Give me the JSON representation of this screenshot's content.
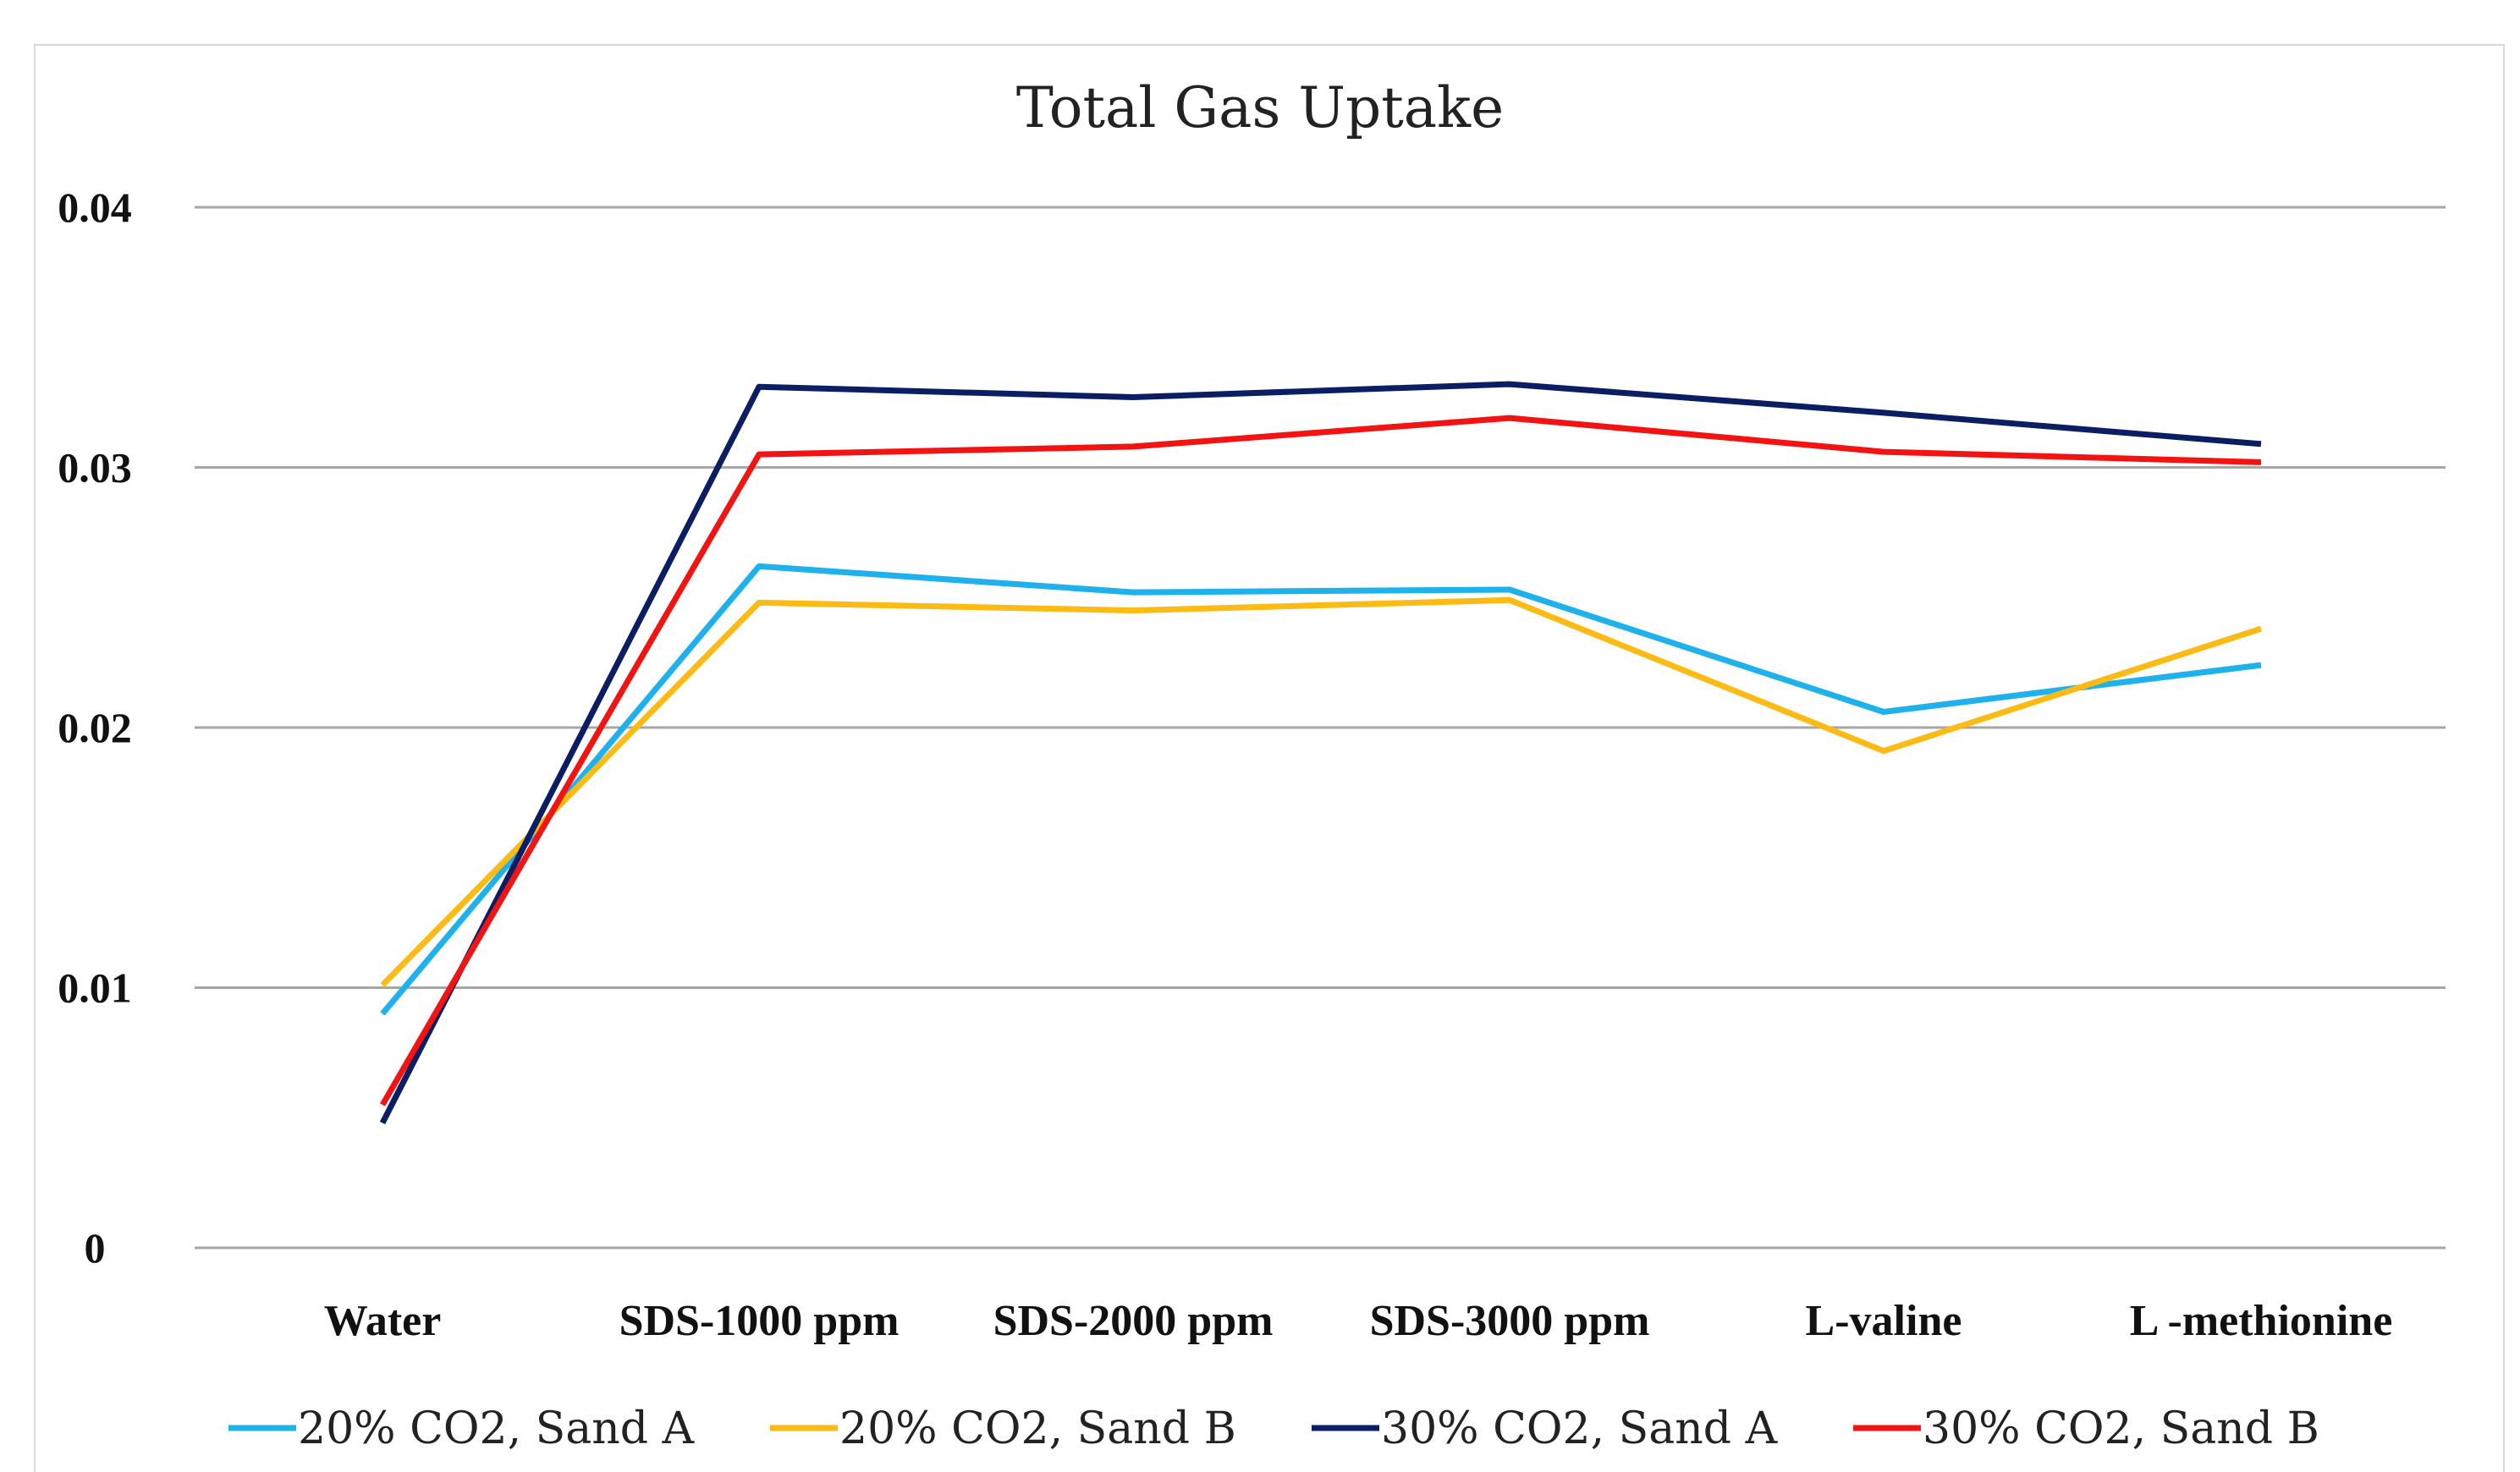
{
  "chart_data": {
    "type": "line",
    "title": "Total Gas Uptake",
    "xlabel": "",
    "ylabel": "",
    "categories": [
      "Water",
      "SDS-1000 ppm",
      "SDS-2000 ppm",
      "SDS-3000 ppm",
      "L-valine",
      "L -methionine"
    ],
    "ylim": [
      0,
      0.04
    ],
    "yticks": [
      0,
      0.01,
      0.02,
      0.03,
      0.04
    ],
    "ytick_labels": [
      "0",
      "0.01",
      "0.02",
      "0.03",
      "0.04"
    ],
    "grid": true,
    "legend_position": "bottom",
    "series": [
      {
        "name": "20% CO2, Sand A",
        "color": "#1fb1ec",
        "values": [
          0.009,
          0.0262,
          0.0252,
          0.0253,
          0.0206,
          0.0224
        ]
      },
      {
        "name": "20% CO2, Sand B",
        "color": "#fbbb14",
        "values": [
          0.0101,
          0.0248,
          0.0245,
          0.0249,
          0.0191,
          0.0238
        ]
      },
      {
        "name": "30% CO2, Sand A",
        "color": "#0c1e63",
        "values": [
          0.0048,
          0.0331,
          0.0327,
          0.0332,
          0.0321,
          0.0309
        ]
      },
      {
        "name": "30% CO2, Sand B",
        "color": "#f21313",
        "values": [
          0.0055,
          0.0305,
          0.0308,
          0.0319,
          0.0306,
          0.0302
        ]
      }
    ]
  }
}
